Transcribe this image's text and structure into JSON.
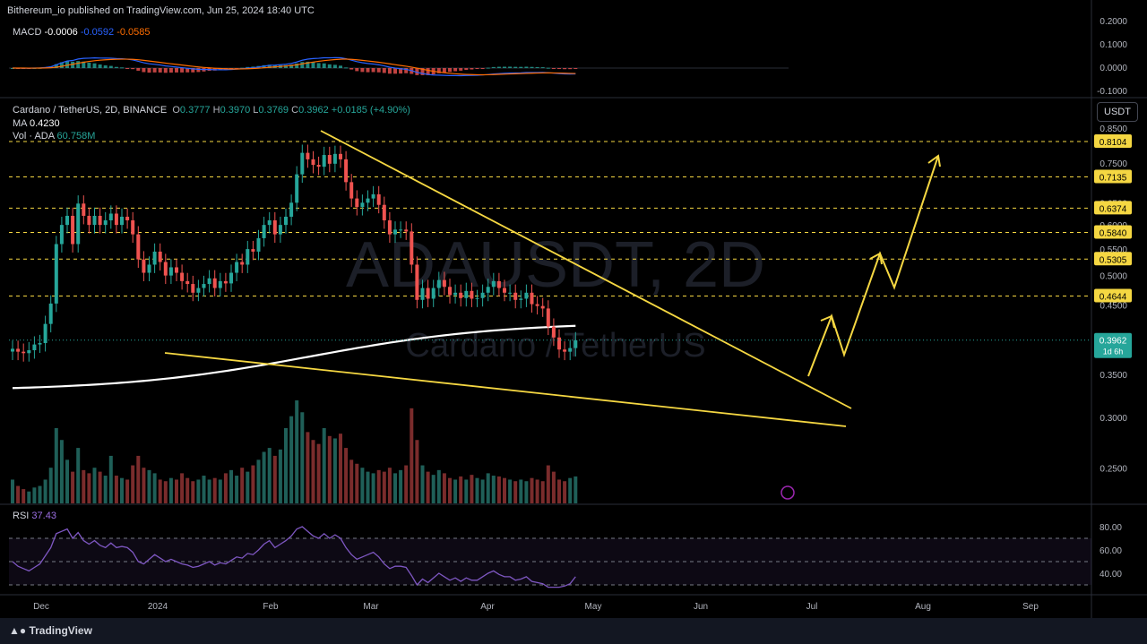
{
  "header": {
    "publisher": "Bithereum_io published on TradingView.com, Jun 25, 2024 18:40 UTC"
  },
  "macd": {
    "label": "MACD",
    "value": "-0.0006",
    "signal": "-0.0592",
    "line": "-0.0585",
    "axis_ticks": [
      "0.2000",
      "0.1000",
      "0.0000",
      "-0.1000"
    ]
  },
  "symbol": {
    "name": "Cardano / TetherUS, 2D, BINANCE",
    "open_label": "O",
    "open": "0.3777",
    "high_label": "H",
    "high": "0.3970",
    "low_label": "L",
    "low": "0.3769",
    "close_label": "C",
    "close": "0.3962",
    "change": "+0.0185 (+4.90%)",
    "watermark_ticker": "ADAUSDT, 2D",
    "watermark_name": "Cardano / TetherUS"
  },
  "ma": {
    "label": "MA",
    "value": "0.4230"
  },
  "volume": {
    "label": "Vol · ADA",
    "value": "60.758M"
  },
  "rsi": {
    "label": "RSI",
    "value": "37.43",
    "axis_ticks": [
      "80.00",
      "60.00",
      "40.00"
    ]
  },
  "currency_button": "USDT",
  "price_axis_ticks": [
    "0.8500",
    "0.7500",
    "0.6500",
    "0.6000",
    "0.5500",
    "0.5000",
    "0.4500",
    "0.3500",
    "0.3000",
    "0.2500"
  ],
  "level_labels": [
    "0.8104",
    "0.7135",
    "0.6374",
    "0.5840",
    "0.5305",
    "0.4644"
  ],
  "current_price": {
    "value": "0.3962",
    "countdown": "1d 6h"
  },
  "time_axis": [
    "Dec",
    "2024",
    "Feb",
    "Mar",
    "Apr",
    "May",
    "Jun",
    "Jul",
    "Aug",
    "Sep"
  ],
  "footer": {
    "brand": "TradingView"
  },
  "colors": {
    "up": "#26a69a",
    "down": "#ef5350",
    "trendline": "#f5d742",
    "ma": "#ffffff",
    "macd": "#2962ff",
    "signal": "#ff6d00",
    "rsi": "#7e57c2"
  },
  "chart_data": {
    "type": "candlestick",
    "title": "Cardano / TetherUS, 2D, BINANCE",
    "ylabel": "USDT",
    "ylim": [
      0.22,
      0.87
    ],
    "x_ticks": [
      "Dec",
      "2024",
      "Feb",
      "Mar",
      "Apr",
      "May",
      "Jun",
      "Jul",
      "Aug",
      "Sep"
    ],
    "levels": [
      0.8104,
      0.7135,
      0.6374,
      0.584,
      0.5305,
      0.4644
    ],
    "ma_last": 0.423,
    "close_series": [
      0.384,
      0.38,
      0.378,
      0.382,
      0.39,
      0.392,
      0.42,
      0.452,
      0.56,
      0.6,
      0.62,
      0.56,
      0.648,
      0.62,
      0.6,
      0.62,
      0.6,
      0.61,
      0.625,
      0.6,
      0.618,
      0.61,
      0.58,
      0.53,
      0.505,
      0.52,
      0.545,
      0.525,
      0.5,
      0.515,
      0.505,
      0.49,
      0.485,
      0.47,
      0.478,
      0.485,
      0.495,
      0.478,
      0.49,
      0.486,
      0.505,
      0.525,
      0.52,
      0.55,
      0.545,
      0.572,
      0.6,
      0.61,
      0.58,
      0.6,
      0.618,
      0.65,
      0.72,
      0.778,
      0.76,
      0.745,
      0.74,
      0.772,
      0.748,
      0.775,
      0.76,
      0.7,
      0.66,
      0.64,
      0.65,
      0.66,
      0.67,
      0.645,
      0.61,
      0.58,
      0.59,
      0.59,
      0.586,
      0.52,
      0.458,
      0.478,
      0.46,
      0.478,
      0.492,
      0.48,
      0.466,
      0.47,
      0.461,
      0.473,
      0.46,
      0.461,
      0.47,
      0.48,
      0.49,
      0.478,
      0.47,
      0.47,
      0.458,
      0.46,
      0.47,
      0.451,
      0.448,
      0.444,
      0.416,
      0.4,
      0.383,
      0.38,
      0.385,
      0.396
    ],
    "volume_series": [
      30,
      22,
      18,
      15,
      20,
      22,
      30,
      45,
      95,
      80,
      55,
      40,
      70,
      42,
      38,
      45,
      40,
      35,
      60,
      35,
      32,
      30,
      48,
      60,
      45,
      42,
      38,
      30,
      28,
      32,
      30,
      38,
      32,
      28,
      30,
      35,
      30,
      32,
      30,
      38,
      42,
      35,
      45,
      40,
      48,
      55,
      65,
      70,
      60,
      68,
      95,
      110,
      130,
      115,
      90,
      80,
      75,
      95,
      85,
      82,
      88,
      70,
      55,
      50,
      45,
      40,
      38,
      42,
      40,
      45,
      38,
      42,
      48,
      120,
      80,
      48,
      40,
      36,
      42,
      38,
      32,
      30,
      34,
      30,
      36,
      32,
      30,
      38,
      35,
      34,
      32,
      30,
      28,
      30,
      28,
      32,
      30,
      28,
      48,
      40,
      30,
      28,
      32,
      34
    ],
    "rsi_series": [
      50,
      46,
      44,
      42,
      45,
      48,
      55,
      62,
      74,
      76,
      78,
      70,
      75,
      68,
      65,
      68,
      64,
      62,
      66,
      62,
      63,
      62,
      58,
      50,
      48,
      52,
      56,
      53,
      50,
      52,
      50,
      48,
      47,
      45,
      46,
      48,
      50,
      47,
      49,
      48,
      51,
      54,
      53,
      57,
      56,
      60,
      65,
      68,
      62,
      65,
      68,
      72,
      78,
      80,
      76,
      72,
      70,
      74,
      70,
      73,
      70,
      62,
      56,
      52,
      54,
      56,
      58,
      54,
      48,
      44,
      46,
      46,
      45,
      38,
      30,
      35,
      32,
      36,
      40,
      37,
      34,
      36,
      33,
      36,
      34,
      34,
      37,
      40,
      42,
      39,
      37,
      37,
      34,
      35,
      37,
      33,
      32,
      31,
      28,
      28,
      28,
      29,
      31,
      37
    ]
  }
}
